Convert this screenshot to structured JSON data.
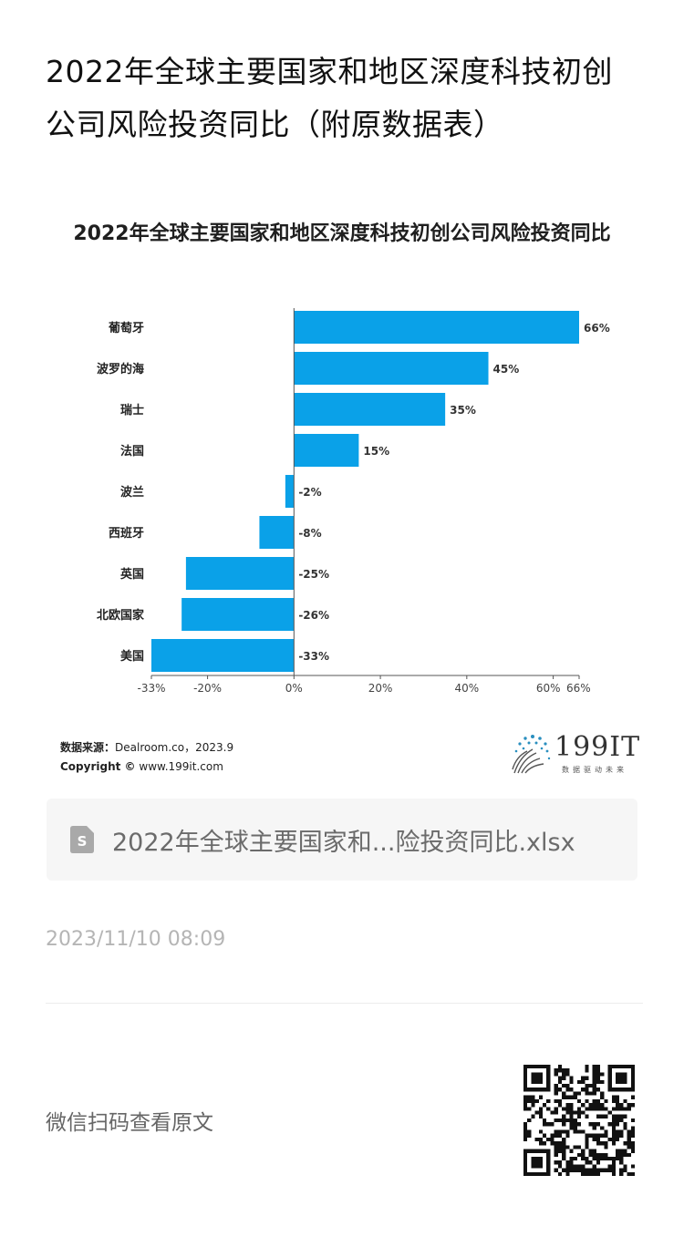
{
  "article": {
    "title_line1": "2022年全球主要国家和地区深度科技初创",
    "title_line2": "公司风险投资同比（附原数据表）"
  },
  "chart_data": {
    "type": "bar",
    "orientation": "horizontal",
    "title": "2022年全球主要国家和地区深度科技初创公司风险投资同比",
    "categories": [
      "葡萄牙",
      "波罗的海",
      "瑞士",
      "法国",
      "波兰",
      "西班牙",
      "英国",
      "北欧国家",
      "美国"
    ],
    "values": [
      66,
      45,
      35,
      15,
      -2,
      -8,
      -25,
      -26,
      -33
    ],
    "value_labels": [
      "66%",
      "45%",
      "35%",
      "15%",
      "-2%",
      "-8%",
      "-25%",
      "-26%",
      "-33%"
    ],
    "xlim": [
      -33,
      66
    ],
    "x_ticks": [
      -33,
      -20,
      0,
      20,
      40,
      60,
      66
    ],
    "x_tick_labels": [
      "-33%",
      "-20%",
      "0%",
      "20%",
      "40%",
      "60%",
      "66%"
    ],
    "bar_color": "#0aa1e8",
    "grid": false
  },
  "source": {
    "label": "数据来源：",
    "value": "Dealroom.co，2023.9",
    "copyright_label": "Copyright ©",
    "copyright_value": "www.199it.com"
  },
  "logo": {
    "text": "199IT",
    "subtitle": "数据驱动未来"
  },
  "attachment": {
    "name": "2022年全球主要国家和...险投资同比.xlsx",
    "icon": "spreadsheet-file-icon"
  },
  "publish_time": "2023/11/10 08:09",
  "qr": {
    "label": "微信扫码查看原文",
    "icon": "qr-code-icon"
  }
}
